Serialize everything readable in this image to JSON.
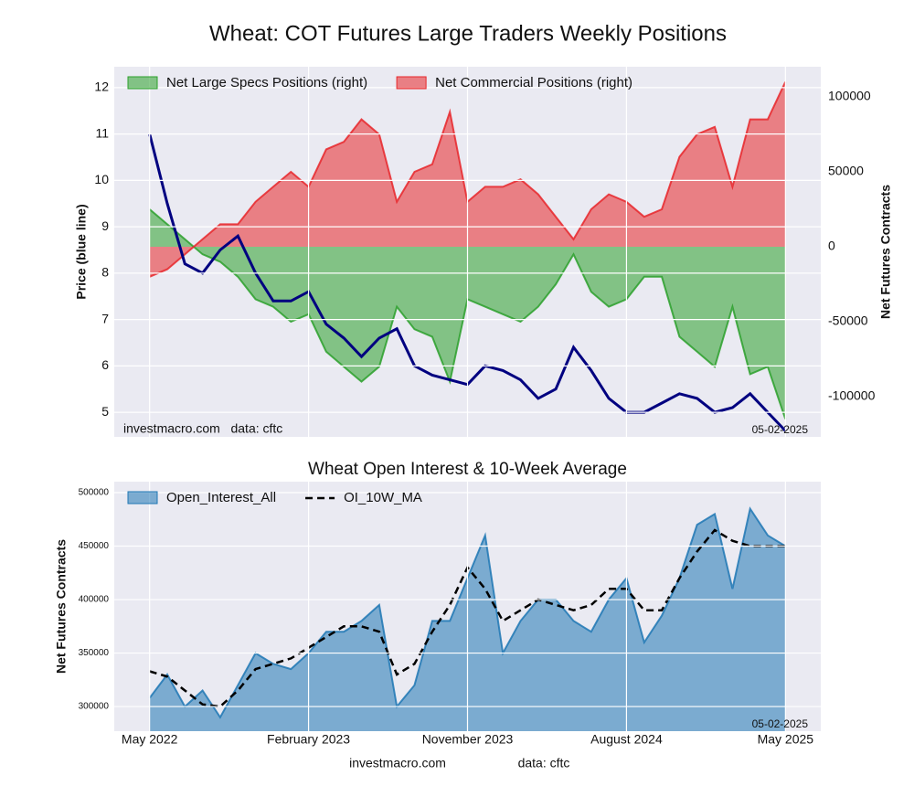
{
  "title": "Wheat: COT Futures Large Traders Weekly Positions",
  "footer": {
    "site": "investmacro.com",
    "data": "data: cftc"
  },
  "chart_data": [
    {
      "type": "area",
      "ylabel": "Price (blue line)",
      "y2label": "Net Futures Contracts",
      "source": "investmacro.com   data: cftc",
      "date": "05-02-2025",
      "x": [
        "2022-05",
        "2022-06",
        "2022-07",
        "2022-08",
        "2022-09",
        "2022-10",
        "2022-11",
        "2022-12",
        "2023-01",
        "2023-02",
        "2023-03",
        "2023-04",
        "2023-05",
        "2023-06",
        "2023-07",
        "2023-08",
        "2023-09",
        "2023-10",
        "2023-11",
        "2023-12",
        "2024-01",
        "2024-02",
        "2024-03",
        "2024-04",
        "2024-05",
        "2024-06",
        "2024-07",
        "2024-08",
        "2024-09",
        "2024-10",
        "2024-11",
        "2024-12",
        "2025-01",
        "2025-02",
        "2025-03",
        "2025-04",
        "2025-05"
      ],
      "xlim": [
        "2022-03",
        "2025-07"
      ],
      "ylim": [
        4.47,
        12.45
      ],
      "yticks": [
        5,
        6,
        7,
        8,
        9,
        10,
        11,
        12
      ],
      "y2lim": [
        -126800,
        120100
      ],
      "y2ticks": [
        -100000,
        -50000,
        0,
        50000,
        100000
      ],
      "grid": true,
      "legend": "upper left",
      "series": [
        {
          "kind": "line",
          "axis": "y",
          "color": "#000080",
          "values": [
            11.0,
            9.5,
            8.2,
            8.0,
            8.5,
            8.8,
            8.0,
            7.4,
            7.4,
            7.6,
            6.9,
            6.6,
            6.2,
            6.6,
            6.8,
            6.0,
            5.8,
            5.7,
            5.6,
            6.0,
            5.9,
            5.7,
            5.3,
            5.5,
            6.4,
            5.9,
            5.3,
            5.0,
            5.0,
            5.2,
            5.4,
            5.3,
            5.0,
            5.1,
            5.4,
            5.0,
            4.6
          ]
        },
        {
          "name": "Net Large Specs Positions (right)",
          "kind": "area",
          "axis": "y2",
          "color": "#2ca02c",
          "values": [
            25000,
            15000,
            5000,
            -5000,
            -10000,
            -20000,
            -35000,
            -40000,
            -50000,
            -45000,
            -70000,
            -80000,
            -90000,
            -80000,
            -40000,
            -55000,
            -60000,
            -90000,
            -35000,
            -40000,
            -45000,
            -50000,
            -40000,
            -25000,
            -5000,
            -30000,
            -40000,
            -35000,
            -20000,
            -20000,
            -60000,
            -70000,
            -80000,
            -40000,
            -85000,
            -80000,
            -115000
          ]
        },
        {
          "name": "Net Commercial Positions (right)",
          "kind": "area",
          "axis": "y2",
          "color": "#e8262a",
          "values": [
            -20000,
            -15000,
            -5000,
            5000,
            15000,
            15000,
            30000,
            40000,
            50000,
            40000,
            65000,
            70000,
            85000,
            75000,
            30000,
            50000,
            55000,
            90000,
            30000,
            40000,
            40000,
            45000,
            35000,
            20000,
            5000,
            25000,
            35000,
            30000,
            20000,
            25000,
            60000,
            75000,
            80000,
            40000,
            85000,
            85000,
            110000
          ]
        }
      ]
    },
    {
      "type": "area",
      "title": "Wheat Open Interest & 10-Week Average",
      "ylabel": "Net Futures Contracts",
      "date": "05-02-2025",
      "x": [
        "2022-05",
        "2022-06",
        "2022-07",
        "2022-08",
        "2022-09",
        "2022-10",
        "2022-11",
        "2022-12",
        "2023-01",
        "2023-02",
        "2023-03",
        "2023-04",
        "2023-05",
        "2023-06",
        "2023-07",
        "2023-08",
        "2023-09",
        "2023-10",
        "2023-11",
        "2023-12",
        "2024-01",
        "2024-02",
        "2024-03",
        "2024-04",
        "2024-05",
        "2024-06",
        "2024-07",
        "2024-08",
        "2024-09",
        "2024-10",
        "2024-11",
        "2024-12",
        "2025-01",
        "2025-02",
        "2025-03",
        "2025-04",
        "2025-05"
      ],
      "xlim": [
        "2022-03",
        "2025-07"
      ],
      "xticks": [
        {
          "value": "2022-05",
          "label": "May 2022"
        },
        {
          "value": "2023-02",
          "label": "February 2023"
        },
        {
          "value": "2023-11",
          "label": "November 2023"
        },
        {
          "value": "2024-08",
          "label": "August 2024"
        },
        {
          "value": "2025-05",
          "label": "May 2025"
        }
      ],
      "ylim": [
        277000,
        510250
      ],
      "yticks": [
        300000,
        350000,
        400000,
        450000,
        500000
      ],
      "grid": true,
      "legend": "upper left",
      "series": [
        {
          "name": "Open_Interest_All",
          "kind": "area",
          "axis": "y",
          "color": "#1f77b4",
          "values": [
            308000,
            330000,
            300000,
            315000,
            290000,
            320000,
            350000,
            340000,
            335000,
            350000,
            370000,
            370000,
            380000,
            395000,
            300000,
            320000,
            380000,
            380000,
            420000,
            460000,
            350000,
            380000,
            400000,
            400000,
            380000,
            370000,
            400000,
            420000,
            360000,
            385000,
            420000,
            470000,
            480000,
            410000,
            485000,
            460000,
            450000
          ]
        },
        {
          "name": "OI_10W_MA",
          "kind": "dashed",
          "axis": "y",
          "color": "#000000",
          "values": [
            333000,
            328000,
            315000,
            302000,
            300000,
            315000,
            335000,
            340000,
            345000,
            355000,
            365000,
            375000,
            375000,
            370000,
            330000,
            340000,
            370000,
            395000,
            430000,
            410000,
            380000,
            390000,
            400000,
            395000,
            390000,
            395000,
            410000,
            410000,
            390000,
            390000,
            420000,
            445000,
            465000,
            455000,
            450000,
            450000,
            450000
          ]
        }
      ]
    }
  ]
}
